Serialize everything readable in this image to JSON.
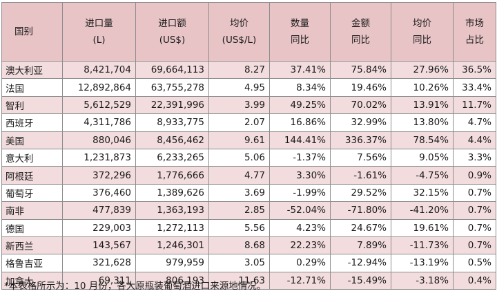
{
  "headers": [
    [
      "国别"
    ],
    [
      "进口量",
      "(L)"
    ],
    [
      "进口额",
      "(US$)"
    ],
    [
      "均价",
      "(US$/L)"
    ],
    [
      "数量",
      "同比"
    ],
    [
      "金额",
      "同比"
    ],
    [
      "均价",
      "同比"
    ],
    [
      "市场",
      "占比"
    ]
  ],
  "rows": [
    [
      "澳大利亚",
      "8,421,704",
      "69,664,113",
      "8.27",
      "37.41%",
      "75.84%",
      "27.96%",
      "36.5%"
    ],
    [
      "法国",
      "12,892,864",
      "63,755,278",
      "4.95",
      "8.34%",
      "19.46%",
      "10.26%",
      "33.4%"
    ],
    [
      "智利",
      "5,612,529",
      "22,391,996",
      "3.99",
      "49.25%",
      "70.02%",
      "13.91%",
      "11.7%"
    ],
    [
      "西班牙",
      "4,311,786",
      "8,933,775",
      "2.07",
      "16.86%",
      "32.99%",
      "13.80%",
      "4.7%"
    ],
    [
      "美国",
      "880,046",
      "8,456,462",
      "9.61",
      "144.41%",
      "336.37%",
      "78.54%",
      "4.4%"
    ],
    [
      "意大利",
      "1,231,873",
      "6,233,265",
      "5.06",
      "-1.37%",
      "7.56%",
      "9.05%",
      "3.3%"
    ],
    [
      "阿根廷",
      "372,296",
      "1,776,666",
      "4.77",
      "3.30%",
      "-1.61%",
      "-4.75%",
      "0.9%"
    ],
    [
      "葡萄牙",
      "376,460",
      "1,389,626",
      "3.69",
      "-1.99%",
      "29.52%",
      "32.15%",
      "0.7%"
    ],
    [
      "南非",
      "477,839",
      "1,363,193",
      "2.85",
      "-52.04%",
      "-71.80%",
      "-41.20%",
      "0.7%"
    ],
    [
      "德国",
      "229,003",
      "1,272,113",
      "5.56",
      "4.23%",
      "24.67%",
      "19.61%",
      "0.7%"
    ],
    [
      "新西兰",
      "143,567",
      "1,246,301",
      "8.68",
      "22.23%",
      "7.89%",
      "-11.73%",
      "0.7%"
    ],
    [
      "格鲁吉亚",
      "321,628",
      "979,959",
      "3.05",
      "0.29%",
      "-12.94%",
      "-13.19%",
      "0.5%"
    ],
    [
      "加拿大",
      "69,311",
      "806,193",
      "11.63",
      "-12.71%",
      "-15.49%",
      "-3.18%",
      "0.4%"
    ]
  ],
  "note": "*本表格所示为：10 月份，各大原瓶装葡萄酒进口来源地情况。",
  "colors": {
    "header_bg": "#e8c4c6",
    "shaded_row_bg": "#f2dcdd",
    "border": "#8c8c8c"
  }
}
